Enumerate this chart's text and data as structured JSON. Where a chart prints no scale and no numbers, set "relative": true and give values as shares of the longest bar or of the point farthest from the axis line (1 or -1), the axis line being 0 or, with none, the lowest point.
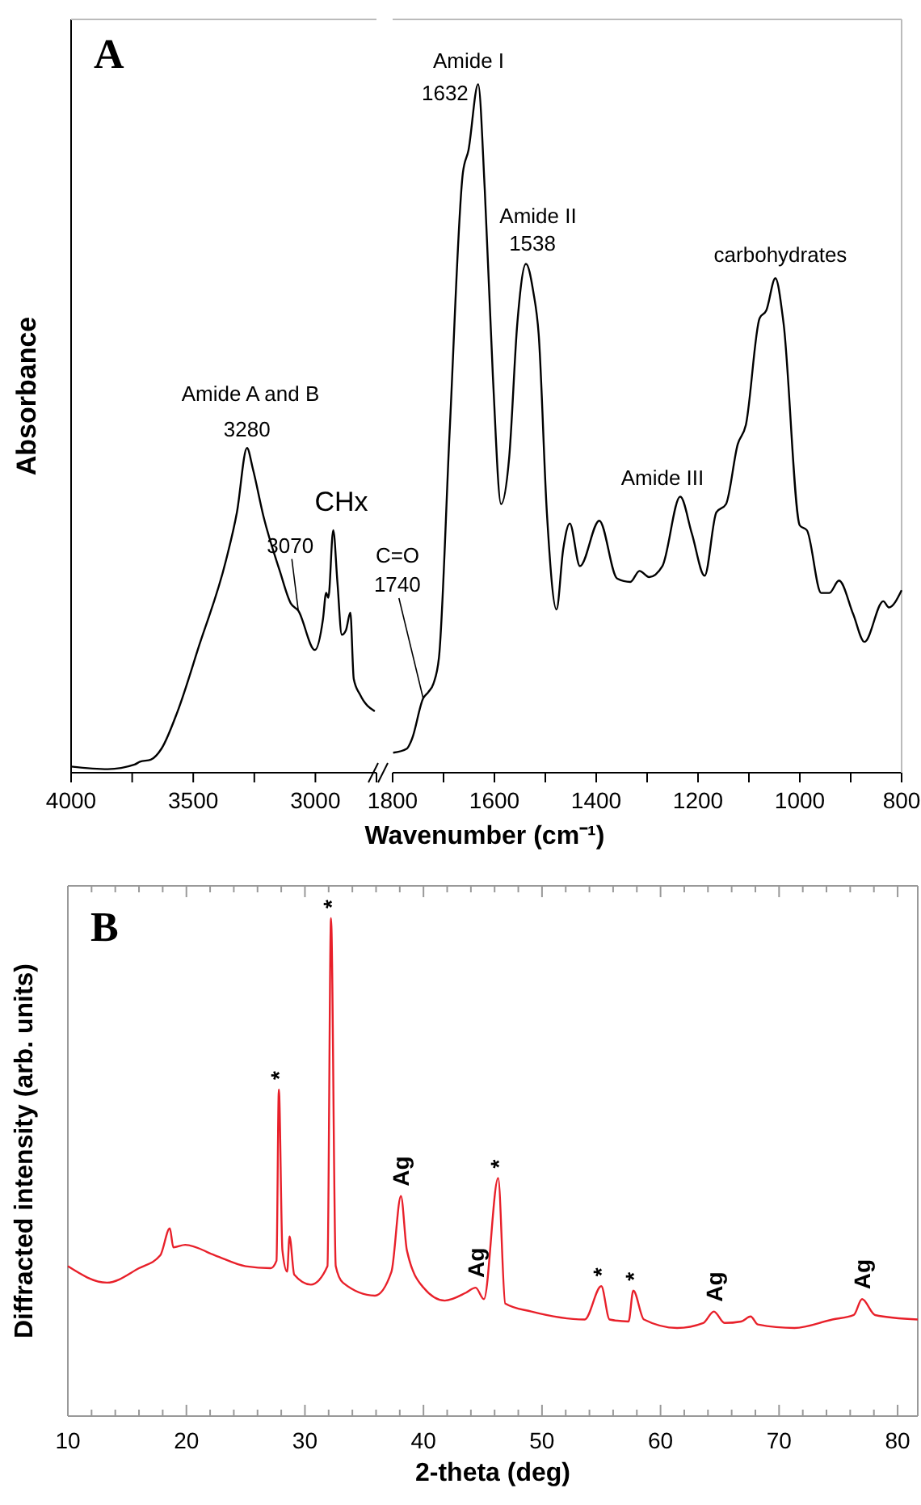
{
  "chart_data": [
    {
      "type": "line",
      "title": "A",
      "ylabel": "Absorbance",
      "relative": true,
      "xlim": [
        4000,
        2750
      ],
      "xticks": [
        4000,
        {
          "value": 3750,
          "label": null
        },
        3500,
        {
          "value": 3250,
          "label": null
        },
        3000,
        {
          "value": 2750,
          "label": null
        }
      ],
      "annotations": [
        "Amide A and B",
        {
          "text": "3280",
          "x": 3280,
          "y": 1
        },
        {
          "text": "3070",
          "x": 3070,
          "y": 0.499
        },
        {
          "text": "CHx",
          "x": 2927,
          "y": 0.747
        }
      ],
      "series": [
        {
          "color": "#000000",
          "x": [
            4000,
            3850,
            3740,
            3718,
            3674,
            3630,
            3564,
            3477,
            3366,
            3321,
            3280,
            3256,
            3212,
            3146,
            3101,
            3070,
            3002,
            2969,
            2956,
            2947,
            2927,
            2910,
            2892,
            2875,
            2857,
            2843,
            2817,
            2757
          ],
          "values": [
            0.019,
            0.011,
            0.025,
            0.034,
            0.04,
            0.074,
            0.189,
            0.389,
            0.654,
            0.803,
            1,
            0.936,
            0.788,
            0.622,
            0.522,
            0.499,
            0.378,
            0.473,
            0.554,
            0.539,
            0.747,
            0.588,
            0.425,
            0.439,
            0.493,
            0.289,
            0.24,
            0.189
          ]
        }
      ]
    },
    {
      "type": "line",
      "xlabel": "Wavenumber (cm⁻¹)",
      "relative": true,
      "xlim": [
        1800,
        800
      ],
      "xticks": [
        1800,
        {
          "value": 1700,
          "label": null
        },
        1600,
        {
          "value": 1500,
          "label": null
        },
        1400,
        {
          "value": 1300,
          "label": null
        },
        1200,
        {
          "value": 1100,
          "label": null
        },
        1000,
        {
          "value": 900,
          "label": null
        },
        800
      ],
      "annotations": [
        "C=O",
        {
          "text": "1740",
          "x": 1740,
          "y": 0.108
        },
        "Amide I",
        {
          "text": "1632",
          "x": 1632,
          "y": 1
        },
        "Amide II",
        {
          "text": "1538",
          "x": 1538,
          "y": 0.739
        },
        "Amide III",
        "carbohydrates"
      ],
      "series": [
        {
          "color": "#000000",
          "x": [
            1799,
            1772,
            1762,
            1740,
            1730,
            1720,
            1709,
            1688,
            1662,
            1651,
            1632,
            1619,
            1603,
            1587,
            1571,
            1555,
            1538,
            1524,
            1513,
            1497,
            1478,
            1465,
            1452,
            1432,
            1394,
            1359,
            1333,
            1315,
            1296,
            1270,
            1235,
            1212,
            1187,
            1164,
            1145,
            1122,
            1106,
            1079,
            1066,
            1048,
            1032,
            1000,
            986,
            958,
            942,
            923,
            895,
            873,
            836,
            825,
            800
          ],
          "values": [
            0.029,
            0.035,
            0.049,
            0.108,
            0.117,
            0.129,
            0.167,
            0.495,
            0.871,
            0.904,
            1,
            0.847,
            0.575,
            0.39,
            0.458,
            0.653,
            0.739,
            0.7,
            0.636,
            0.378,
            0.237,
            0.324,
            0.362,
            0.3,
            0.366,
            0.282,
            0.277,
            0.293,
            0.284,
            0.3,
            0.401,
            0.347,
            0.286,
            0.378,
            0.39,
            0.477,
            0.505,
            0.66,
            0.671,
            0.718,
            0.653,
            0.359,
            0.352,
            0.261,
            0.261,
            0.279,
            0.23,
            0.19,
            0.249,
            0.24,
            0.265
          ]
        }
      ]
    },
    {
      "type": "line",
      "title": "B",
      "xlabel": "2-theta (deg)",
      "ylabel": "Diffracted intensity (arb. units)",
      "relative": true,
      "xlim": [
        10,
        81.7
      ],
      "xticks": [
        10,
        {
          "value": 12,
          "label": null
        },
        {
          "value": 14,
          "label": null
        },
        {
          "value": 16,
          "label": null
        },
        {
          "value": 18,
          "label": null
        },
        20,
        {
          "value": 22,
          "label": null
        },
        {
          "value": 24,
          "label": null
        },
        {
          "value": 26,
          "label": null
        },
        {
          "value": 28,
          "label": null
        },
        30,
        {
          "value": 32,
          "label": null
        },
        {
          "value": 34,
          "label": null
        },
        {
          "value": 36,
          "label": null
        },
        {
          "value": 38,
          "label": null
        },
        40,
        {
          "value": 42,
          "label": null
        },
        {
          "value": 44,
          "label": null
        },
        {
          "value": 46,
          "label": null
        },
        {
          "value": 48,
          "label": null
        },
        50,
        {
          "value": 52,
          "label": null
        },
        {
          "value": 54,
          "label": null
        },
        {
          "value": 56,
          "label": null
        },
        {
          "value": 58,
          "label": null
        },
        60,
        {
          "value": 62,
          "label": null
        },
        {
          "value": 64,
          "label": null
        },
        {
          "value": 66,
          "label": null
        },
        {
          "value": 68,
          "label": null
        },
        70,
        {
          "value": 72,
          "label": null
        },
        {
          "value": 74,
          "label": null
        },
        {
          "value": 76,
          "label": null
        },
        {
          "value": 78,
          "label": null
        },
        80
      ],
      "annotations": [
        {
          "text": "*",
          "x": 27.8,
          "y": 0.656
        },
        {
          "text": "*",
          "x": 32.2,
          "y": 1
        },
        {
          "text": "Ag",
          "x": 38.1,
          "y": 0.442
        },
        {
          "text": "Ag",
          "x": 44.4,
          "y": 0.258
        },
        {
          "text": "*",
          "x": 46.3,
          "y": 0.478
        },
        {
          "text": "*",
          "x": 55,
          "y": 0.261
        },
        {
          "text": "*",
          "x": 57.7,
          "y": 0.252
        },
        {
          "text": "Ag",
          "x": 64.5,
          "y": 0.21
        },
        {
          "text": "Ag",
          "x": 77,
          "y": 0.235
        }
      ],
      "series": [
        {
          "color": "#e8202a",
          "x": [
            10,
            13.3,
            16,
            17.8,
            18.6,
            18.9,
            19.9,
            22.4,
            25,
            27.1,
            27.6,
            27.8,
            28.1,
            28.5,
            28.7,
            29.1,
            30.5,
            31.9,
            32.2,
            32.6,
            33.2,
            35.9,
            37.3,
            38.1,
            38.6,
            40,
            41.8,
            43.6,
            44.4,
            45.1,
            46.3,
            46.9,
            49.1,
            53.6,
            55,
            55.7,
            57.3,
            57.7,
            58.6,
            61.4,
            63.6,
            64.5,
            65.4,
            66.8,
            67.6,
            68.2,
            71.3,
            74.5,
            76.3,
            77,
            78.1,
            81.7
          ],
          "values": [
            0.301,
            0.268,
            0.297,
            0.323,
            0.377,
            0.339,
            0.344,
            0.323,
            0.301,
            0.297,
            0.312,
            0.656,
            0.333,
            0.29,
            0.361,
            0.284,
            0.264,
            0.301,
            1,
            0.301,
            0.268,
            0.242,
            0.29,
            0.442,
            0.333,
            0.258,
            0.232,
            0.248,
            0.258,
            0.235,
            0.478,
            0.226,
            0.21,
            0.194,
            0.261,
            0.194,
            0.19,
            0.252,
            0.194,
            0.177,
            0.187,
            0.21,
            0.187,
            0.19,
            0.2,
            0.184,
            0.177,
            0.194,
            0.203,
            0.235,
            0.203,
            0.194
          ]
        }
      ]
    }
  ]
}
